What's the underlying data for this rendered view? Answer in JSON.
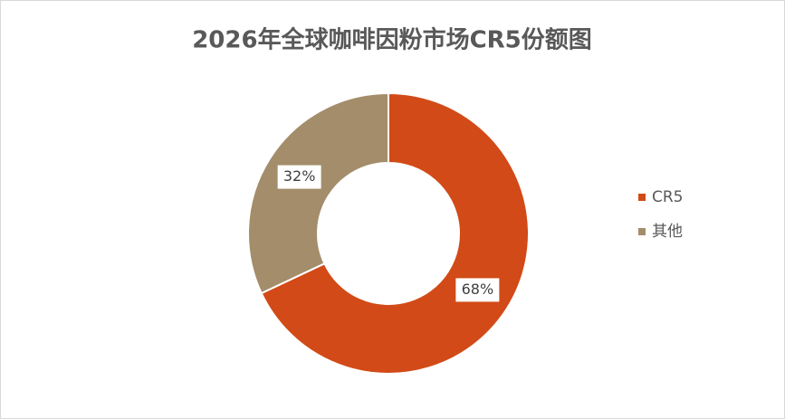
{
  "chart_data": {
    "type": "donut",
    "title": "2026年全球咖啡因粉市场CR5份额图",
    "categories": [
      "CR5",
      "其他"
    ],
    "values": [
      68,
      32
    ],
    "value_labels": [
      "68%",
      "32%"
    ],
    "colors": [
      "#d24a17",
      "#a38d6a"
    ],
    "legend": "right"
  }
}
